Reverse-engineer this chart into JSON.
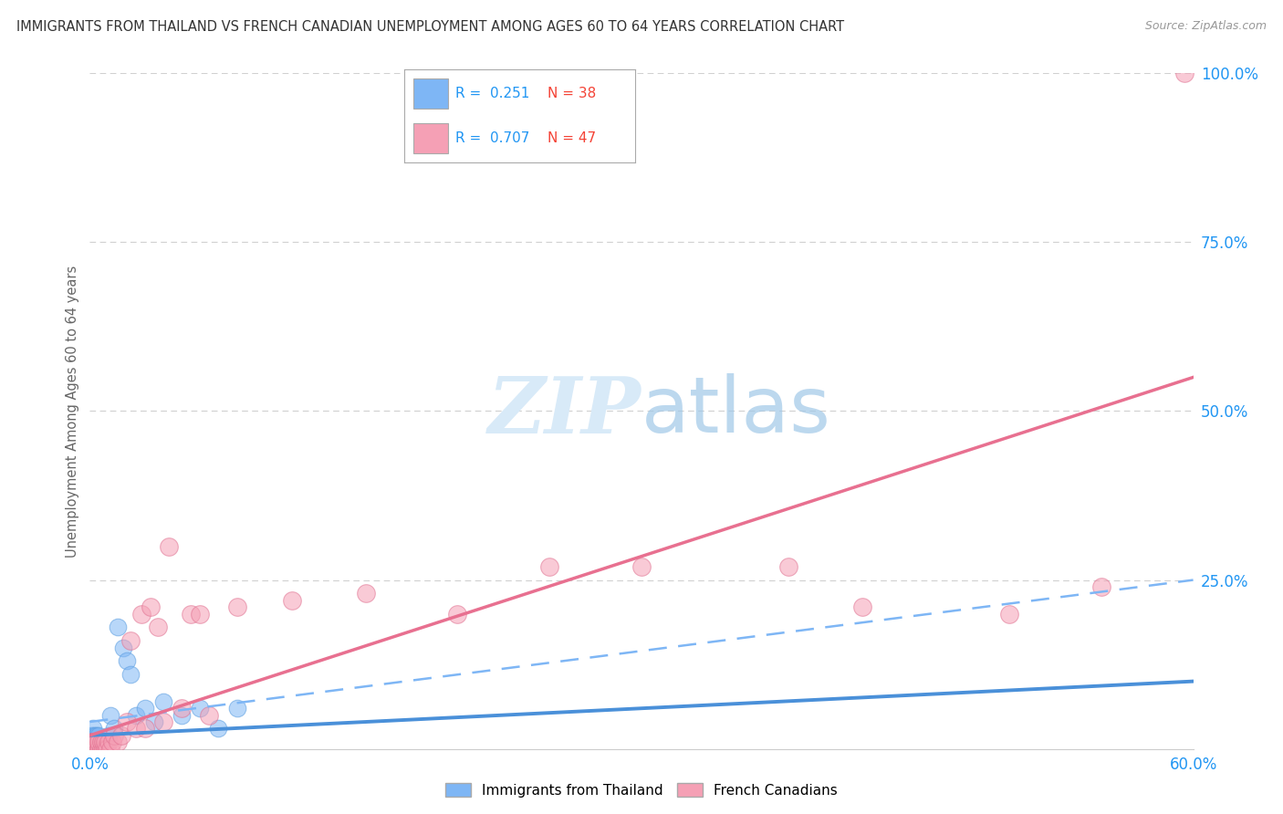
{
  "title": "IMMIGRANTS FROM THAILAND VS FRENCH CANADIAN UNEMPLOYMENT AMONG AGES 60 TO 64 YEARS CORRELATION CHART",
  "source": "Source: ZipAtlas.com",
  "ylabel": "Unemployment Among Ages 60 to 64 years",
  "xlim": [
    0.0,
    0.6
  ],
  "ylim": [
    0.0,
    1.0
  ],
  "ytick_values": [
    1.0,
    0.75,
    0.5,
    0.25
  ],
  "ytick_labels": [
    "100.0%",
    "75.0%",
    "50.0%",
    "25.0%"
  ],
  "background_color": "#ffffff",
  "grid_color": "#d0d0d0",
  "series1_color": "#7eb6f5",
  "series1_edge": "#5a9de0",
  "series2_color": "#f5a0b5",
  "series2_edge": "#e07090",
  "series1_label": "Immigrants from Thailand",
  "series2_label": "French Canadians",
  "series1_R": 0.251,
  "series1_N": 38,
  "series2_R": 0.707,
  "series2_N": 47,
  "legend_R_color": "#2196F3",
  "legend_N_color": "#f44336",
  "watermark_color": "#d8eaf8",
  "axis_color": "#2196F3",
  "ylabel_color": "#666666",
  "title_color": "#333333",
  "source_color": "#999999"
}
